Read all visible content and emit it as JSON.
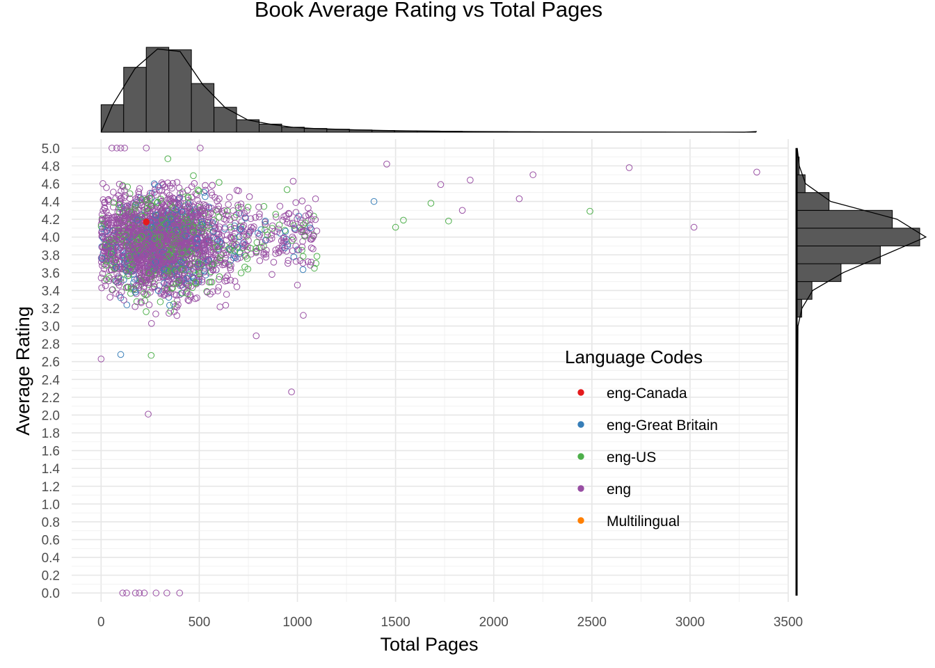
{
  "chart_data": {
    "type": "scatter",
    "title": "Book Average Rating vs Total Pages",
    "xlabel": "Total Pages",
    "ylabel": "Average Rating",
    "xlim": [
      -150,
      3500
    ],
    "ylim": [
      -0.1,
      5.1
    ],
    "x_ticks": [
      "0",
      "500",
      "1000",
      "1500",
      "2000",
      "2500",
      "3000",
      "3500"
    ],
    "x_tick_values": [
      0,
      500,
      1000,
      1500,
      2000,
      2500,
      3000,
      3500
    ],
    "y_ticks": [
      "0.0",
      "0.2",
      "0.4",
      "0.6",
      "0.8",
      "1.0",
      "1.2",
      "1.4",
      "1.6",
      "1.8",
      "2.0",
      "2.2",
      "2.4",
      "2.6",
      "2.8",
      "3.0",
      "3.2",
      "3.4",
      "3.6",
      "3.8",
      "4.0",
      "4.2",
      "4.4",
      "4.6",
      "4.8",
      "5.0"
    ],
    "y_tick_values": [
      0,
      0.2,
      0.4,
      0.6,
      0.8,
      1.0,
      1.2,
      1.4,
      1.6,
      1.8,
      2.0,
      2.2,
      2.4,
      2.6,
      2.8,
      3.0,
      3.2,
      3.4,
      3.6,
      3.8,
      4.0,
      4.2,
      4.4,
      4.6,
      4.8,
      5.0
    ],
    "grid": true,
    "legend": {
      "title": "Language Codes",
      "placement": "bottom-right inside plot",
      "entries": [
        {
          "label": "eng-Canada",
          "color": "#e41a1c"
        },
        {
          "label": "eng-Great Britain",
          "color": "#377eb8"
        },
        {
          "label": "eng-US",
          "color": "#4daf4a"
        },
        {
          "label": "eng",
          "color": "#984ea3"
        },
        {
          "label": "Multilingual",
          "color": "#ff7f00"
        }
      ]
    },
    "series_points_sample": [
      {
        "x": 230,
        "y": 4.17,
        "lang": "eng-Canada"
      },
      {
        "x": 1390,
        "y": 4.4,
        "lang": "eng-Great Britain"
      },
      {
        "x": 355,
        "y": 4.2,
        "lang": "eng-Great Britain"
      },
      {
        "x": 100,
        "y": 2.68,
        "lang": "eng-Great Britain"
      },
      {
        "x": 340,
        "y": 4.88,
        "lang": "eng-US"
      },
      {
        "x": 1680,
        "y": 4.38,
        "lang": "eng-US"
      },
      {
        "x": 1770,
        "y": 4.18,
        "lang": "eng-US"
      },
      {
        "x": 2490,
        "y": 4.29,
        "lang": "eng-US"
      },
      {
        "x": 1500,
        "y": 4.11,
        "lang": "eng-US"
      },
      {
        "x": 1540,
        "y": 4.19,
        "lang": "eng-US"
      },
      {
        "x": 470,
        "y": 4.69,
        "lang": "eng-US"
      },
      {
        "x": 255,
        "y": 2.67,
        "lang": "eng-US"
      },
      {
        "x": 1455,
        "y": 4.82,
        "lang": "eng"
      },
      {
        "x": 2690,
        "y": 4.78,
        "lang": "eng"
      },
      {
        "x": 3340,
        "y": 4.73,
        "lang": "eng"
      },
      {
        "x": 3020,
        "y": 4.11,
        "lang": "eng"
      },
      {
        "x": 2200,
        "y": 4.7,
        "lang": "eng"
      },
      {
        "x": 2130,
        "y": 4.43,
        "lang": "eng"
      },
      {
        "x": 1880,
        "y": 4.64,
        "lang": "eng"
      },
      {
        "x": 1730,
        "y": 4.59,
        "lang": "eng"
      },
      {
        "x": 1840,
        "y": 4.3,
        "lang": "eng"
      },
      {
        "x": 970,
        "y": 2.26,
        "lang": "eng"
      },
      {
        "x": 1030,
        "y": 3.12,
        "lang": "eng"
      },
      {
        "x": 1000,
        "y": 3.46,
        "lang": "eng"
      },
      {
        "x": 790,
        "y": 2.89,
        "lang": "eng"
      },
      {
        "x": 240,
        "y": 2.01,
        "lang": "eng"
      },
      {
        "x": 0,
        "y": 2.63,
        "lang": "eng"
      },
      {
        "x": 55,
        "y": 5.0,
        "lang": "eng"
      },
      {
        "x": 80,
        "y": 5.0,
        "lang": "eng"
      },
      {
        "x": 100,
        "y": 5.0,
        "lang": "eng"
      },
      {
        "x": 120,
        "y": 5.0,
        "lang": "eng"
      },
      {
        "x": 230,
        "y": 5.0,
        "lang": "eng"
      },
      {
        "x": 505,
        "y": 5.0,
        "lang": "eng"
      },
      {
        "x": 110,
        "y": 0.0,
        "lang": "eng"
      },
      {
        "x": 130,
        "y": 0.0,
        "lang": "eng"
      },
      {
        "x": 175,
        "y": 0.0,
        "lang": "eng"
      },
      {
        "x": 195,
        "y": 0.0,
        "lang": "eng"
      },
      {
        "x": 220,
        "y": 0.0,
        "lang": "eng"
      },
      {
        "x": 280,
        "y": 0.0,
        "lang": "eng"
      },
      {
        "x": 335,
        "y": 0.0,
        "lang": "eng"
      },
      {
        "x": 400,
        "y": 0.0,
        "lang": "eng"
      }
    ],
    "marginal_x_histogram": {
      "type": "bar",
      "bin_width_pages": 115,
      "bin_start": 0,
      "counts": [
        22,
        52,
        68,
        66,
        39,
        20,
        10,
        6.5,
        4,
        3,
        2.4,
        1.8,
        1.4,
        1.1,
        0.9,
        0.7,
        0.55,
        0.45,
        0.35,
        0.3,
        0.25,
        0.2,
        0.15,
        0.12,
        0.1,
        0.08,
        0.06,
        0.05,
        0.04
      ]
    },
    "marginal_y_histogram": {
      "type": "bar",
      "bin_width_rating": 0.2,
      "bins": [
        {
          "from": 3.1,
          "to": 3.3,
          "count": 3
        },
        {
          "from": 3.3,
          "to": 3.5,
          "count": 9
        },
        {
          "from": 3.5,
          "to": 3.7,
          "count": 26
        },
        {
          "from": 3.7,
          "to": 3.9,
          "count": 49
        },
        {
          "from": 3.9,
          "to": 4.1,
          "count": 72
        },
        {
          "from": 4.1,
          "to": 4.3,
          "count": 56
        },
        {
          "from": 4.3,
          "to": 4.5,
          "count": 19
        },
        {
          "from": 4.5,
          "to": 4.7,
          "count": 5
        },
        {
          "from": 4.7,
          "to": 4.9,
          "count": 1.5
        }
      ]
    }
  }
}
